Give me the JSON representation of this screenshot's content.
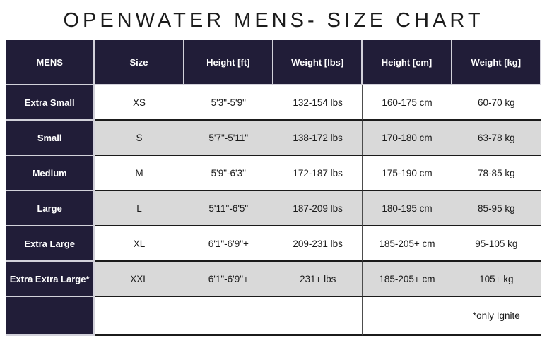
{
  "title": "OPENWATER MENS- SIZE CHART",
  "table": {
    "headers": {
      "mens": "MENS",
      "size": "Size",
      "height_ft": "Height [ft]",
      "weight_lbs": "Weight [lbs]",
      "height_cm": "Height [cm]",
      "weight_kg": "Weight [kg]"
    },
    "rows": [
      {
        "mens": "Extra Small",
        "size": "XS",
        "height_ft": "5'3\"-5'9\"",
        "weight_lbs": "132-154 lbs",
        "height_cm": "160-175 cm",
        "weight_kg": "60-70 kg"
      },
      {
        "mens": "Small",
        "size": "S",
        "height_ft": "5'7\"-5'11\"",
        "weight_lbs": "138-172 lbs",
        "height_cm": "170-180 cm",
        "weight_kg": "63-78 kg"
      },
      {
        "mens": "Medium",
        "size": "M",
        "height_ft": "5'9\"-6'3\"",
        "weight_lbs": "172-187 lbs",
        "height_cm": "175-190 cm",
        "weight_kg": "78-85 kg"
      },
      {
        "mens": "Large",
        "size": "L",
        "height_ft": "5'11\"-6'5\"",
        "weight_lbs": "187-209 lbs",
        "height_cm": "180-195 cm",
        "weight_kg": "85-95 kg"
      },
      {
        "mens": "Extra Large",
        "size": "XL",
        "height_ft": "6'1\"-6'9\"+",
        "weight_lbs": "209-231 lbs",
        "height_cm": "185-205+ cm",
        "weight_kg": "95-105 kg"
      },
      {
        "mens": "Extra Extra Large*",
        "size": "XXL",
        "height_ft": "6'1\"-6'9\"+",
        "weight_lbs": "231+ lbs",
        "height_cm": "185-205+ cm",
        "weight_kg": "105+ kg"
      },
      {
        "mens": "",
        "size": "",
        "height_ft": "",
        "weight_lbs": "",
        "height_cm": "",
        "weight_kg": "*only Ignite"
      }
    ]
  },
  "colors": {
    "navy": "#211d38",
    "row_gray": "#d9d9d9",
    "row_white": "#ffffff",
    "border_light": "#d2d1da",
    "border_dark": "#1b1b1b",
    "border_vertical": "#4d4d4d",
    "text": "#1a1a1a"
  }
}
